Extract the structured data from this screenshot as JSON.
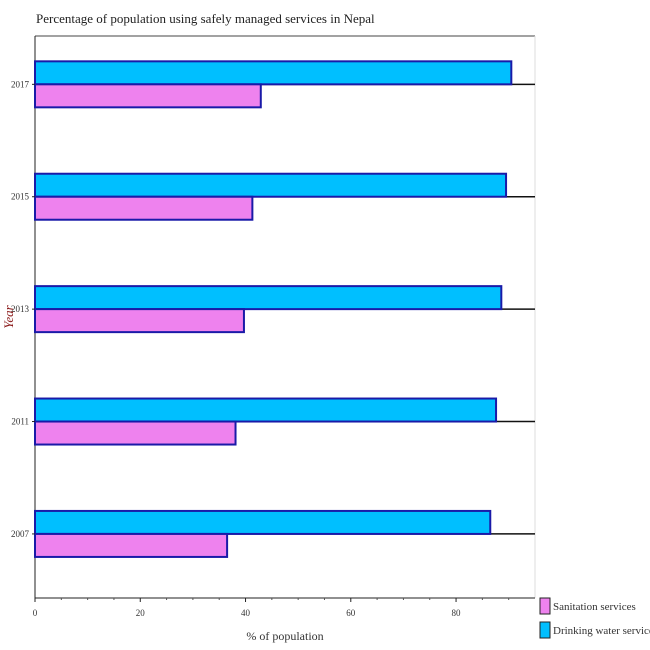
{
  "chart_data": {
    "type": "bar",
    "orientation": "horizontal",
    "title": "Percentage of population using safely managed services in Nepal",
    "xlabel": "% of population",
    "ylabel": "Year",
    "categories": [
      "2007",
      "2011",
      "2013",
      "2015",
      "2017"
    ],
    "xlim": [
      0,
      95
    ],
    "xticks": [
      0,
      20,
      40,
      60,
      80
    ],
    "series": [
      {
        "name": "Sanitation services",
        "color": "#ee82ee",
        "values": [
          36.5,
          38.1,
          39.7,
          41.3,
          42.9
        ]
      },
      {
        "name": "Drinking water services",
        "color": "#00bfff",
        "values": [
          86.5,
          87.6,
          88.6,
          89.5,
          90.5
        ]
      }
    ],
    "legend_position": "bottom-right",
    "grid": false
  }
}
